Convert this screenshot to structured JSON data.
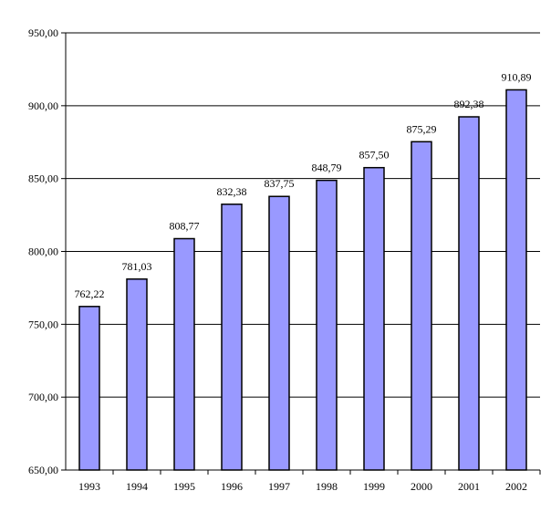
{
  "chart_data": {
    "type": "bar",
    "title": "",
    "xlabel": "",
    "ylabel": "",
    "categories": [
      "1993",
      "1994",
      "1995",
      "1996",
      "1997",
      "1998",
      "1999",
      "2000",
      "2001",
      "2002"
    ],
    "values": [
      762.22,
      781.03,
      808.77,
      832.38,
      837.75,
      848.79,
      857.5,
      875.29,
      892.38,
      910.89
    ],
    "value_labels": [
      "762,22",
      "781,03",
      "808,77",
      "832,38",
      "837,75",
      "848,79",
      "857,50",
      "875,29",
      "892,38",
      "910,89"
    ],
    "ylim": [
      650,
      950
    ],
    "y_ticks": [
      650,
      700,
      750,
      800,
      850,
      900,
      950
    ],
    "y_tick_labels": [
      "650,00",
      "700,00",
      "750,00",
      "800,00",
      "850,00",
      "900,00",
      "950,00"
    ],
    "grid": true,
    "legend": "none",
    "colors": {
      "bar_fill": "#9999ff",
      "bar_stroke": "#000000",
      "grid": "#000000",
      "axis": "#000000"
    }
  }
}
